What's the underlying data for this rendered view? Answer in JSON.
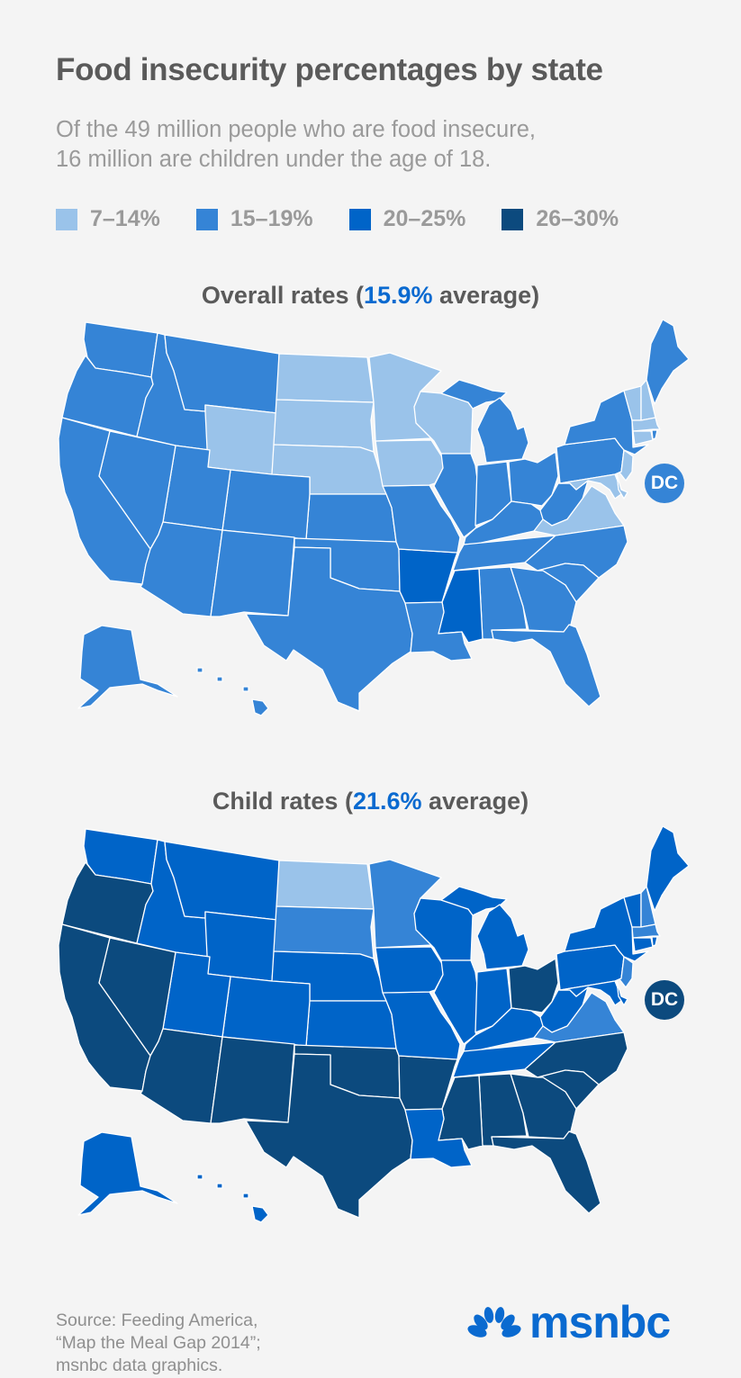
{
  "header": {
    "title": "Food insecurity percentages by state",
    "subtitle_line1": "Of the 49 million people who are food insecure,",
    "subtitle_line2": "16 million are children under the age of 18."
  },
  "legend": [
    {
      "label": "7–14%",
      "key": "a",
      "color": "#9ac3ea"
    },
    {
      "label": "15–19%",
      "key": "b",
      "color": "#3584d6"
    },
    {
      "label": "20–25%",
      "key": "c",
      "color": "#0064c8"
    },
    {
      "label": "26–30%",
      "key": "d",
      "color": "#0c4a7e"
    }
  ],
  "maps": {
    "overall": {
      "title_prefix": "Overall rates (",
      "average": "15.9%",
      "title_suffix": " average)",
      "dc_label": "DC",
      "states": {
        "WA": "b",
        "OR": "b",
        "CA": "b",
        "ID": "b",
        "NV": "b",
        "MT": "b",
        "WY": "a",
        "UT": "b",
        "AZ": "b",
        "CO": "b",
        "NM": "b",
        "ND": "a",
        "SD": "a",
        "NE": "a",
        "KS": "b",
        "OK": "b",
        "TX": "b",
        "MN": "a",
        "IA": "a",
        "MO": "b",
        "AR": "c",
        "LA": "b",
        "WI": "a",
        "MIU": "b",
        "MIL": "b",
        "IL": "b",
        "IN": "b",
        "OH": "b",
        "KY": "b",
        "TN": "b",
        "MS": "c",
        "AL": "b",
        "GA": "b",
        "FL": "b",
        "SC": "b",
        "NC": "b",
        "VA": "a",
        "WV": "b",
        "PA": "b",
        "NY": "b",
        "NJ": "a",
        "MD": "a",
        "DE": "a",
        "VT": "a",
        "NH": "a",
        "ME": "b",
        "MA": "a",
        "CT": "a",
        "RI": "b",
        "AK": "b",
        "HI": "b",
        "DC": "b"
      }
    },
    "child": {
      "title_prefix": "Child rates (",
      "average": "21.6%",
      "title_suffix": " average)",
      "dc_label": "DC",
      "states": {
        "WA": "c",
        "OR": "d",
        "CA": "d",
        "ID": "c",
        "NV": "d",
        "MT": "c",
        "WY": "c",
        "UT": "c",
        "AZ": "d",
        "CO": "c",
        "NM": "d",
        "ND": "a",
        "SD": "b",
        "NE": "c",
        "KS": "c",
        "OK": "d",
        "TX": "d",
        "MN": "b",
        "IA": "c",
        "MO": "c",
        "AR": "d",
        "LA": "c",
        "WI": "c",
        "MIU": "c",
        "MIL": "c",
        "IL": "c",
        "IN": "c",
        "OH": "d",
        "KY": "c",
        "TN": "c",
        "MS": "d",
        "AL": "d",
        "GA": "d",
        "FL": "d",
        "SC": "d",
        "NC": "d",
        "VA": "b",
        "WV": "c",
        "PA": "c",
        "NY": "c",
        "NJ": "b",
        "MD": "c",
        "DE": "c",
        "VT": "c",
        "NH": "b",
        "ME": "c",
        "MA": "b",
        "CT": "c",
        "RI": "c",
        "AK": "c",
        "HI": "c",
        "DC": "d"
      }
    }
  },
  "source": {
    "line1": "Source: Feeding America,",
    "line2": "“Map the Meal Gap 2014”;",
    "line3": "msnbc data graphics."
  },
  "logo": {
    "text": "msnbc",
    "color": "#0a6ad0"
  }
}
